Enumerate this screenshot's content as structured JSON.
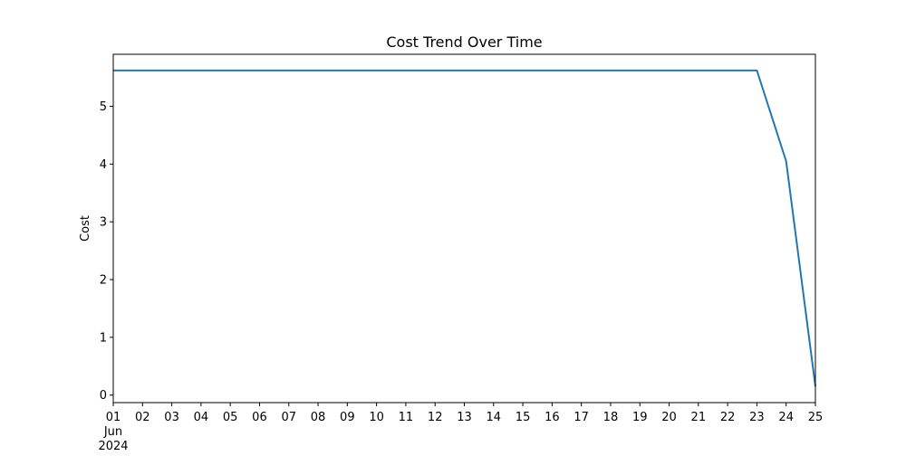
{
  "chart_data": {
    "type": "line",
    "title": "Cost Trend Over Time",
    "xlabel": "",
    "ylabel": "Cost",
    "x_axis": {
      "type": "date",
      "tick_labels": [
        "01",
        "02",
        "03",
        "04",
        "05",
        "06",
        "07",
        "08",
        "09",
        "10",
        "11",
        "12",
        "13",
        "14",
        "15",
        "16",
        "17",
        "18",
        "19",
        "20",
        "21",
        "22",
        "23",
        "24",
        "25"
      ],
      "first_tick_extra_lines": [
        "Jun",
        "2024"
      ]
    },
    "y_axis": {
      "ticks": [
        0,
        1,
        2,
        3,
        4,
        5
      ],
      "tick_labels": [
        "0",
        "1",
        "2",
        "3",
        "4",
        "5"
      ]
    },
    "xlim": [
      "2024-06-01",
      "2024-06-25"
    ],
    "ylim": [
      -0.13,
      5.9
    ],
    "grid": false,
    "series": [
      {
        "color": "#1f77b4",
        "x": [
          "2024-06-01",
          "2024-06-02",
          "2024-06-03",
          "2024-06-04",
          "2024-06-05",
          "2024-06-06",
          "2024-06-07",
          "2024-06-08",
          "2024-06-09",
          "2024-06-10",
          "2024-06-11",
          "2024-06-12",
          "2024-06-13",
          "2024-06-14",
          "2024-06-15",
          "2024-06-16",
          "2024-06-17",
          "2024-06-18",
          "2024-06-19",
          "2024-06-20",
          "2024-06-21",
          "2024-06-22",
          "2024-06-23",
          "2024-06-24",
          "2024-06-25"
        ],
        "y": [
          5.62,
          5.62,
          5.62,
          5.62,
          5.62,
          5.62,
          5.62,
          5.62,
          5.62,
          5.62,
          5.62,
          5.62,
          5.62,
          5.62,
          5.62,
          5.62,
          5.62,
          5.62,
          5.62,
          5.62,
          5.62,
          5.62,
          5.62,
          4.05,
          0.15
        ]
      }
    ]
  }
}
